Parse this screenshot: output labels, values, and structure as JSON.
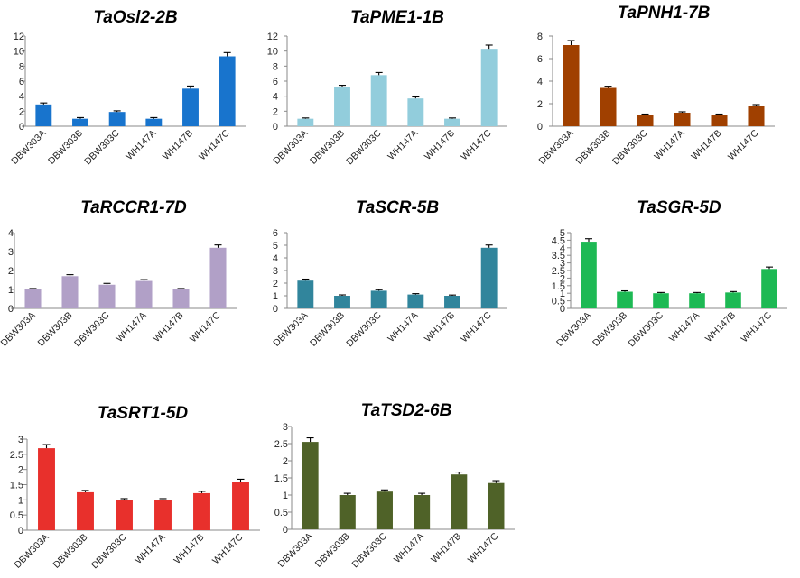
{
  "chart_data": [
    {
      "type": "bar",
      "title": "TaOsl2-2B",
      "categories": [
        "DBW303A",
        "DBW303B",
        "DBW303C",
        "WH147A",
        "WH147B",
        "WH147C"
      ],
      "values": [
        2.9,
        1.0,
        1.9,
        1.0,
        5.0,
        9.3
      ],
      "errors": [
        0.2,
        0.15,
        0.15,
        0.15,
        0.35,
        0.5
      ],
      "ylim": [
        0,
        12
      ],
      "yticks": [
        0,
        2,
        4,
        6,
        8,
        10,
        12
      ],
      "color": "#1874CD",
      "xlabel": "",
      "ylabel": ""
    },
    {
      "type": "bar",
      "title": "TaPME1-1B",
      "categories": [
        "DBW303A",
        "DBW303B",
        "DBW303C",
        "WH147A",
        "WH147B",
        "WH147C"
      ],
      "values": [
        1.0,
        5.2,
        6.8,
        3.7,
        1.0,
        10.3
      ],
      "errors": [
        0.1,
        0.25,
        0.35,
        0.2,
        0.1,
        0.5
      ],
      "ylim": [
        0,
        12
      ],
      "yticks": [
        0,
        2,
        4,
        6,
        8,
        10,
        12
      ],
      "color": "#92CDDC",
      "xlabel": "",
      "ylabel": ""
    },
    {
      "type": "bar",
      "title": "TaPNH1-7B",
      "categories": [
        "DBW303A",
        "DBW303B",
        "DBW303C",
        "WH147A",
        "WH147B",
        "WH147C"
      ],
      "values": [
        7.2,
        3.4,
        1.0,
        1.2,
        1.0,
        1.8
      ],
      "errors": [
        0.4,
        0.15,
        0.08,
        0.08,
        0.08,
        0.12
      ],
      "ylim": [
        0,
        8
      ],
      "yticks": [
        0,
        2,
        4,
        6,
        8
      ],
      "color": "#A04000",
      "xlabel": "",
      "ylabel": ""
    },
    {
      "type": "bar",
      "title": "TaRCCR1-7D",
      "categories": [
        "DBW303A",
        "DBW303B",
        "DBW303C",
        "WH147A",
        "WH147B",
        "WH147C"
      ],
      "values": [
        1.0,
        1.7,
        1.25,
        1.45,
        1.0,
        3.2
      ],
      "errors": [
        0.05,
        0.08,
        0.07,
        0.07,
        0.05,
        0.15
      ],
      "ylim": [
        0,
        4
      ],
      "yticks": [
        0,
        1,
        2,
        3,
        4
      ],
      "color": "#B1A0C7",
      "xlabel": "",
      "ylabel": ""
    },
    {
      "type": "bar",
      "title": "TaSCR-5B",
      "categories": [
        "DBW303A",
        "DBW303B",
        "DBW303C",
        "WH147A",
        "WH147B",
        "WH147C"
      ],
      "values": [
        2.2,
        1.0,
        1.4,
        1.1,
        1.0,
        4.8
      ],
      "errors": [
        0.12,
        0.07,
        0.08,
        0.07,
        0.06,
        0.22
      ],
      "ylim": [
        0,
        6
      ],
      "yticks": [
        0,
        1,
        2,
        3,
        4,
        5,
        6
      ],
      "color": "#31859C",
      "xlabel": "",
      "ylabel": ""
    },
    {
      "type": "bar",
      "title": "TaSGR-5D",
      "categories": [
        "DBW303A",
        "DBW303B",
        "DBW303C",
        "WH147A",
        "WH147B",
        "WH147C"
      ],
      "values": [
        4.4,
        1.1,
        1.0,
        1.0,
        1.05,
        2.6
      ],
      "errors": [
        0.2,
        0.06,
        0.05,
        0.05,
        0.06,
        0.13
      ],
      "ylim": [
        0,
        5
      ],
      "yticks": [
        0,
        0.5,
        1,
        1.5,
        2,
        2.5,
        3,
        3.5,
        4,
        4.5,
        5
      ],
      "color": "#1DB954",
      "xlabel": "",
      "ylabel": ""
    },
    {
      "type": "bar",
      "title": "TaSRT1-5D",
      "categories": [
        "DBW303A",
        "DBW303B",
        "DBW303C",
        "WH147A",
        "WH147B",
        "WH147C"
      ],
      "values": [
        2.7,
        1.25,
        1.0,
        1.0,
        1.22,
        1.6
      ],
      "errors": [
        0.12,
        0.06,
        0.04,
        0.04,
        0.06,
        0.08
      ],
      "ylim": [
        0,
        3
      ],
      "yticks": [
        0,
        0.5,
        1,
        1.5,
        2,
        2.5,
        3
      ],
      "color": "#E8302C",
      "xlabel": "",
      "ylabel": ""
    },
    {
      "type": "bar",
      "title": "TaTSD2-6B",
      "categories": [
        "DBW303A",
        "DBW303B",
        "DBW303C",
        "WH147A",
        "WH147B",
        "WH147C"
      ],
      "values": [
        2.55,
        1.0,
        1.1,
        1.0,
        1.6,
        1.35
      ],
      "errors": [
        0.12,
        0.05,
        0.05,
        0.05,
        0.07,
        0.07
      ],
      "ylim": [
        0,
        3
      ],
      "yticks": [
        0,
        0.5,
        1,
        1.5,
        2,
        2.5,
        3
      ],
      "color": "#4F6228",
      "xlabel": "",
      "ylabel": ""
    }
  ]
}
